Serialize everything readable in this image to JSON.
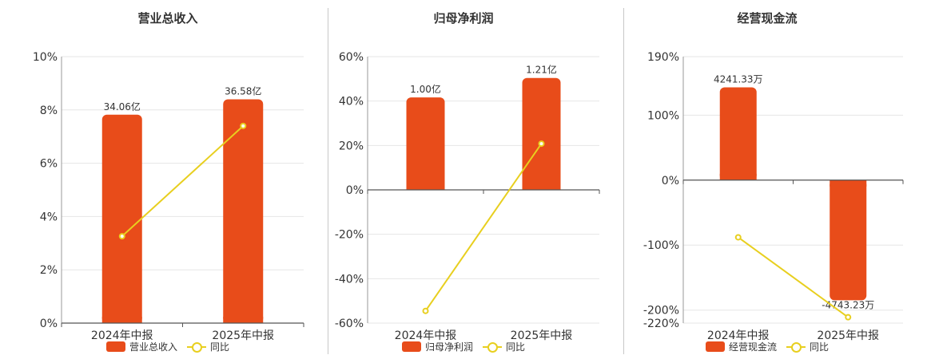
{
  "colors": {
    "bar": "#e84c1a",
    "line": "#e8cf1f",
    "grid": "#e6e6e6",
    "axis": "#333333"
  },
  "chart_data": [
    {
      "type": "bar",
      "title": "营业总收入",
      "categories": [
        "2024年中报",
        "2025年中报"
      ],
      "bar_series": {
        "name": "营业总收入",
        "values": [
          34.06,
          36.58
        ],
        "labels": [
          "34.06亿",
          "36.58亿"
        ]
      },
      "line_series": {
        "name": "同比",
        "values": [
          3.26,
          7.4
        ]
      },
      "ylim": [
        0,
        10
      ],
      "ticks": [
        0,
        2,
        4,
        6,
        8,
        10
      ],
      "tick_labels": [
        "0%",
        "2%",
        "4%",
        "6%",
        "8%",
        "10%"
      ]
    },
    {
      "type": "bar",
      "title": "归母净利润",
      "categories": [
        "2024年中报",
        "2025年中报"
      ],
      "bar_series": {
        "name": "归母净利润",
        "values": [
          1.0,
          1.21
        ],
        "labels": [
          "1.00亿",
          "1.21亿"
        ]
      },
      "line_series": {
        "name": "同比",
        "values": [
          -54.5,
          20.8
        ]
      },
      "ylim": [
        -60,
        60
      ],
      "ticks": [
        -60,
        -40,
        -20,
        0,
        20,
        40,
        60
      ],
      "tick_labels": [
        "-60%",
        "-40%",
        "-20%",
        "0%",
        "20%",
        "40%",
        "60%"
      ]
    },
    {
      "type": "bar",
      "title": "经营现金流",
      "categories": [
        "2024年中报",
        "2025年中报"
      ],
      "bar_series": {
        "name": "经营现金流",
        "values": [
          4241.33,
          -4743.23
        ],
        "labels": [
          "4241.33万",
          "-4743.23万"
        ]
      },
      "line_series": {
        "name": "同比",
        "values": [
          -88,
          -211
        ]
      },
      "ylim": [
        -220,
        190
      ],
      "ticks": [
        -220,
        -200,
        -100,
        0,
        100,
        190
      ],
      "tick_labels": [
        "-220%",
        "-200%",
        "-100%",
        "0%",
        "100%",
        "190%"
      ]
    }
  ]
}
